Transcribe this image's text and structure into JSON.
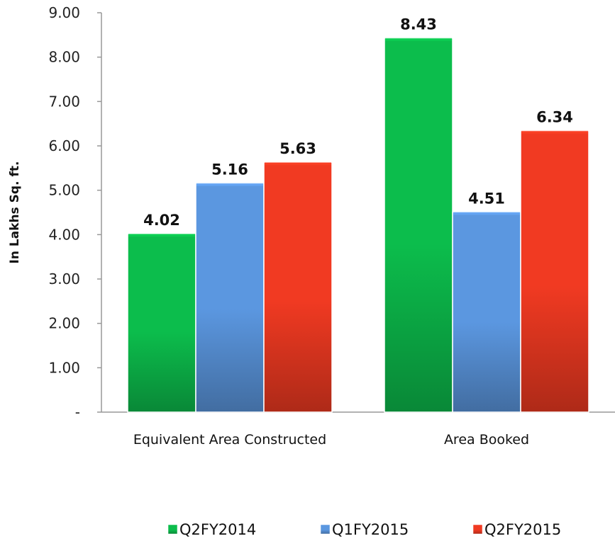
{
  "chart_data": {
    "type": "bar",
    "title": "",
    "xlabel": "",
    "ylabel": "In Lakhs Sq. ft.",
    "categories": [
      "Equivalent Area Constructed",
      "Area Booked"
    ],
    "series": [
      {
        "name": "Q2FY2014",
        "values": [
          4.02,
          8.43
        ],
        "labels": [
          "4.02",
          "8.43"
        ],
        "color": "#0cbd4c"
      },
      {
        "name": "Q1FY2015",
        "values": [
          5.16,
          4.51
        ],
        "labels": [
          "5.16",
          "4.51"
        ],
        "color": "#5b97e0"
      },
      {
        "name": "Q2FY2015",
        "values": [
          5.63,
          6.34
        ],
        "labels": [
          "5.63",
          "6.34"
        ],
        "color": "#f13a22"
      }
    ],
    "ylim": [
      0,
      9
    ],
    "yticks": [
      0,
      1,
      2,
      3,
      4,
      5,
      6,
      7,
      8,
      9
    ],
    "ytick_labels": [
      "-",
      "1.00",
      "2.00",
      "3.00",
      "4.00",
      "5.00",
      "6.00",
      "7.00",
      "8.00",
      "9.00"
    ],
    "grid": false,
    "legend_position": "bottom"
  }
}
